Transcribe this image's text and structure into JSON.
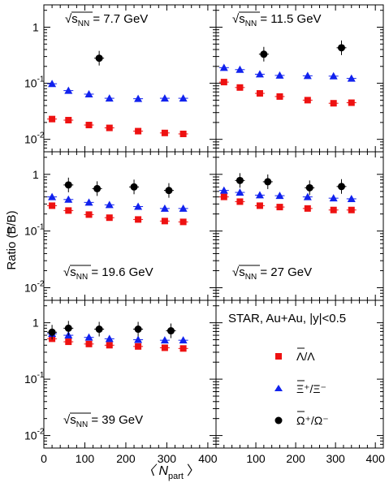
{
  "figure": {
    "ylabel": "Ratio (B/B)",
    "xlabel": "〈 N",
    "xlabel_sub": "part",
    "xlabel_close": "〉",
    "y_tick_labels": [
      "10",
      "10",
      "1"
    ],
    "y_tick_exponents": [
      "-2",
      "-1",
      ""
    ],
    "x_tick_labels": [
      "0",
      "100",
      "200",
      "300",
      "400"
    ]
  },
  "info_panel": {
    "experiment": "STAR, Au+Au, |y|<0.5",
    "legend": [
      {
        "label": "Λ/Λ",
        "marker": "square",
        "color": "#ee1111"
      },
      {
        "label": "Ξ⁺/Ξ⁻",
        "marker": "triangle",
        "color": "#1122ee"
      },
      {
        "label": "Ω⁺/Ω⁻",
        "marker": "circle",
        "color": "#000000"
      }
    ]
  },
  "chart_data": [
    {
      "type": "scatter",
      "energy_prefix": "√s",
      "energy_sub": "NN",
      "energy_value": " = 7.7 GeV",
      "x_range": [
        0,
        420
      ],
      "y_range": [
        0.006,
        2.5
      ],
      "y_scale": "log",
      "series": [
        {
          "marker": "square",
          "color": "#ee1111",
          "x": [
            20,
            60,
            110,
            160,
            230,
            295,
            340
          ],
          "y": [
            0.023,
            0.022,
            0.018,
            0.016,
            0.014,
            0.013,
            0.0125
          ]
        },
        {
          "marker": "triangle",
          "color": "#1122ee",
          "x": [
            20,
            60,
            110,
            160,
            230,
            295,
            340
          ],
          "y": [
            0.098,
            0.074,
            0.064,
            0.054,
            0.053,
            0.054,
            0.054
          ]
        },
        {
          "marker": "circle",
          "color": "#000000",
          "x": [
            135
          ],
          "y": [
            0.28
          ]
        }
      ]
    },
    {
      "type": "scatter",
      "energy_prefix": "√s",
      "energy_sub": "NN",
      "energy_value": " = 11.5 GeV",
      "x_range": [
        0,
        420
      ],
      "y_range": [
        0.006,
        2.5
      ],
      "y_scale": "log",
      "series": [
        {
          "marker": "square",
          "color": "#ee1111",
          "x": [
            20,
            60,
            110,
            160,
            230,
            295,
            340
          ],
          "y": [
            0.105,
            0.084,
            0.066,
            0.058,
            0.05,
            0.044,
            0.045
          ]
        },
        {
          "marker": "triangle",
          "color": "#1122ee",
          "x": [
            20,
            60,
            110,
            160,
            230,
            295,
            340
          ],
          "y": [
            0.19,
            0.175,
            0.145,
            0.138,
            0.136,
            0.134,
            0.122
          ]
        },
        {
          "marker": "circle",
          "color": "#000000",
          "x": [
            120,
            315
          ],
          "y": [
            0.33,
            0.43
          ]
        }
      ]
    },
    {
      "type": "scatter",
      "energy_prefix": "√s",
      "energy_sub": "NN",
      "energy_value": " = 19.6 GeV",
      "x_range": [
        0,
        420
      ],
      "y_range": [
        0.006,
        2.5
      ],
      "y_scale": "log",
      "series": [
        {
          "marker": "square",
          "color": "#ee1111",
          "x": [
            20,
            60,
            110,
            160,
            230,
            295,
            340
          ],
          "y": [
            0.28,
            0.23,
            0.195,
            0.172,
            0.16,
            0.15,
            0.145
          ]
        },
        {
          "marker": "triangle",
          "color": "#1122ee",
          "x": [
            20,
            60,
            110,
            160,
            230,
            295,
            340
          ],
          "y": [
            0.4,
            0.36,
            0.32,
            0.29,
            0.27,
            0.25,
            0.25
          ]
        },
        {
          "marker": "circle",
          "color": "#000000",
          "x": [
            60,
            130,
            220,
            305
          ],
          "y": [
            0.65,
            0.56,
            0.6,
            0.52
          ]
        }
      ]
    },
    {
      "type": "scatter",
      "energy_prefix": "√s",
      "energy_sub": "NN",
      "energy_value": " = 27 GeV",
      "x_range": [
        0,
        420
      ],
      "y_range": [
        0.006,
        2.5
      ],
      "y_scale": "log",
      "series": [
        {
          "marker": "square",
          "color": "#ee1111",
          "x": [
            20,
            60,
            110,
            160,
            230,
            295,
            340
          ],
          "y": [
            0.4,
            0.33,
            0.28,
            0.265,
            0.25,
            0.235,
            0.235
          ]
        },
        {
          "marker": "triangle",
          "color": "#1122ee",
          "x": [
            20,
            60,
            110,
            160,
            230,
            295,
            340
          ],
          "y": [
            0.52,
            0.48,
            0.43,
            0.42,
            0.4,
            0.38,
            0.37
          ]
        },
        {
          "marker": "circle",
          "color": "#000000",
          "x": [
            60,
            130,
            235,
            315
          ],
          "y": [
            0.78,
            0.74,
            0.58,
            0.61
          ]
        }
      ]
    },
    {
      "type": "scatter",
      "energy_prefix": "√s",
      "energy_sub": "NN",
      "energy_value": " = 39 GeV",
      "x_range": [
        0,
        420
      ],
      "y_range": [
        0.006,
        2.5
      ],
      "y_scale": "log",
      "series": [
        {
          "marker": "square",
          "color": "#ee1111",
          "x": [
            20,
            60,
            110,
            160,
            230,
            295,
            340
          ],
          "y": [
            0.52,
            0.46,
            0.42,
            0.4,
            0.38,
            0.36,
            0.35
          ]
        },
        {
          "marker": "triangle",
          "color": "#1122ee",
          "x": [
            20,
            60,
            110,
            160,
            230,
            295,
            340
          ],
          "y": [
            0.64,
            0.6,
            0.55,
            0.52,
            0.5,
            0.49,
            0.49
          ]
        },
        {
          "marker": "circle",
          "color": "#000000",
          "x": [
            20,
            60,
            135,
            230,
            310
          ],
          "y": [
            0.68,
            0.8,
            0.77,
            0.77,
            0.72
          ]
        }
      ]
    }
  ]
}
